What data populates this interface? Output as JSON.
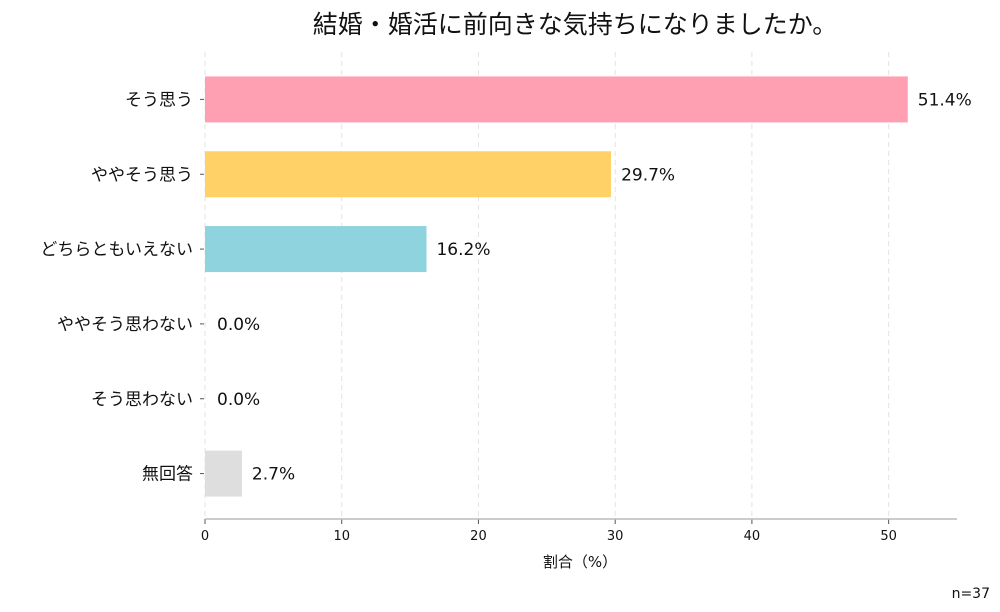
{
  "chart_data": {
    "type": "bar",
    "orientation": "horizontal",
    "title": "結婚・婚活に前向きな気持ちになりましたか。",
    "categories": [
      "そう思う",
      "ややそう思う",
      "どちらともいえない",
      "ややそう思わない",
      "そう思わない",
      "無回答"
    ],
    "values": [
      51.4,
      29.7,
      16.2,
      0.0,
      0.0,
      2.7
    ],
    "value_labels": [
      "51.4%",
      "29.7%",
      "16.2%",
      "0.0%",
      "0.0%",
      "2.7%"
    ],
    "colors": [
      "#FF9FB2",
      "#FFD166",
      "#8ED3DE",
      "#CCCCCC",
      "#CCCCCC",
      "#DEDEDE"
    ],
    "xlabel": "割合（%）",
    "ylabel": "",
    "xlim": [
      0,
      55
    ],
    "xticks": [
      0,
      10,
      20,
      30,
      40,
      50
    ],
    "grid": "vertical dashed",
    "note": "n=37"
  }
}
